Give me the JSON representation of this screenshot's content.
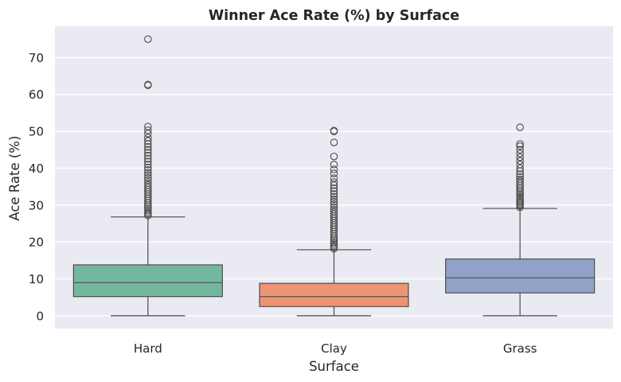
{
  "chart_data": {
    "type": "box",
    "title": "Winner Ace Rate (%) by Surface",
    "xlabel": "Surface",
    "ylabel": "Ace Rate (%)",
    "ylim": [
      -3.5,
      78.5
    ],
    "yticks": [
      0,
      10,
      20,
      30,
      40,
      50,
      60,
      70
    ],
    "grid": true,
    "categories": [
      "Hard",
      "Clay",
      "Grass"
    ],
    "colors": [
      "#74b79f",
      "#ef9472",
      "#92a1c8"
    ],
    "boxes": [
      {
        "category": "Hard",
        "min": 0,
        "q1": 5.2,
        "median": 9.0,
        "q3": 13.8,
        "whisker_high": 26.8,
        "outliers": [
          27.2,
          27.6,
          28.0,
          28.5,
          29.0,
          29.5,
          30.0,
          30.6,
          31.2,
          31.8,
          32.4,
          33.0,
          33.6,
          34.2,
          34.8,
          35.4,
          36.0,
          36.7,
          37.4,
          38.1,
          38.8,
          39.5,
          40.2,
          41.0,
          41.8,
          42.6,
          43.4,
          44.2,
          45.0,
          45.8,
          46.6,
          47.4,
          48.3,
          49.4,
          50.3,
          51.3,
          62.5,
          62.7,
          75.0
        ]
      },
      {
        "category": "Clay",
        "min": 0,
        "q1": 2.5,
        "median": 5.2,
        "q3": 8.8,
        "whisker_high": 17.9,
        "outliers": [
          18.2,
          18.6,
          19.0,
          19.5,
          20.0,
          20.5,
          21.0,
          21.6,
          22.2,
          22.8,
          23.4,
          24.0,
          24.6,
          25.2,
          25.8,
          26.4,
          27.0,
          27.6,
          28.2,
          28.8,
          29.5,
          30.2,
          30.9,
          31.6,
          32.3,
          33.0,
          33.8,
          34.6,
          35.4,
          36.2,
          37.3,
          38.6,
          39.7,
          41.0,
          43.2,
          47.0,
          50.0,
          50.2
        ]
      },
      {
        "category": "Grass",
        "min": 0,
        "q1": 6.2,
        "median": 10.3,
        "q3": 15.4,
        "whisker_high": 29.1,
        "outliers": [
          29.4,
          29.8,
          30.2,
          30.6,
          31.0,
          31.5,
          32.0,
          32.5,
          33.0,
          33.5,
          34.0,
          34.6,
          35.2,
          35.8,
          36.4,
          37.0,
          37.7,
          38.4,
          39.2,
          40.0,
          41.0,
          42.0,
          43.0,
          44.0,
          45.0,
          46.0,
          46.6,
          51.1
        ]
      }
    ]
  }
}
